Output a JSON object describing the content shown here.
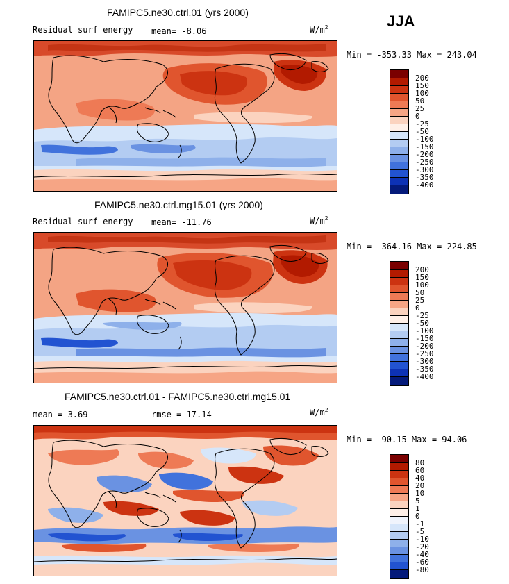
{
  "season": "JJA",
  "panels": [
    {
      "title": "FAMIPC5.ne30.ctrl.01 (yrs 2000)",
      "left_label": "Residual surf energy",
      "stat1": "mean=  -8.06",
      "stat2": "",
      "units": "W/m",
      "units_sup": "2",
      "minmax": "Min = -353.33 Max = 243.04",
      "levels": [
        "200",
        "150",
        "100",
        "50",
        "25",
        "0",
        "-25",
        "-50",
        "-100",
        "-150",
        "-200",
        "-250",
        "-300",
        "-350",
        "-400"
      ],
      "colors": [
        "#7a0000",
        "#b21a00",
        "#cc3311",
        "#e0552e",
        "#ee7a55",
        "#f6a585",
        "#fbd3bf",
        "#fff0e8",
        "#d6e6fa",
        "#b3ccf2",
        "#8eb0ea",
        "#6a92e2",
        "#4172dc",
        "#2253d1",
        "#0d32b5",
        "#041a7a"
      ]
    },
    {
      "title": "FAMIPC5.ne30.ctrl.mg15.01 (yrs 2000)",
      "left_label": "Residual surf energy",
      "stat1": "mean= -11.76",
      "stat2": "",
      "units": "W/m",
      "units_sup": "2",
      "minmax": "Min = -364.16 Max = 224.85",
      "levels": [
        "200",
        "150",
        "100",
        "50",
        "25",
        "0",
        "-25",
        "-50",
        "-100",
        "-150",
        "-200",
        "-250",
        "-300",
        "-350",
        "-400"
      ],
      "colors": [
        "#7a0000",
        "#b21a00",
        "#cc3311",
        "#e0552e",
        "#ee7a55",
        "#f6a585",
        "#fbd3bf",
        "#fff0e8",
        "#d6e6fa",
        "#b3ccf2",
        "#8eb0ea",
        "#6a92e2",
        "#4172dc",
        "#2253d1",
        "#0d32b5",
        "#041a7a"
      ]
    },
    {
      "title": "FAMIPC5.ne30.ctrl.01 - FAMIPC5.ne30.ctrl.mg15.01",
      "left_label": "mean =    3.69",
      "stat1": "",
      "stat2": "rmse =  17.14",
      "units": "W/m",
      "units_sup": "2",
      "minmax": "Min = -90.15 Max =  94.06",
      "levels": [
        "80",
        "60",
        "40",
        "20",
        "10",
        "5",
        "1",
        "0",
        "-1",
        "-5",
        "-10",
        "-20",
        "-40",
        "-60",
        "-80"
      ],
      "colors": [
        "#7a0000",
        "#b21a00",
        "#cc3311",
        "#e0552e",
        "#ee7a55",
        "#f6a585",
        "#fbd3bf",
        "#fff0e8",
        "#f0f4fc",
        "#d6e6fa",
        "#b3ccf2",
        "#8eb0ea",
        "#6a92e2",
        "#4172dc",
        "#2253d1",
        "#041a7a"
      ]
    }
  ]
}
